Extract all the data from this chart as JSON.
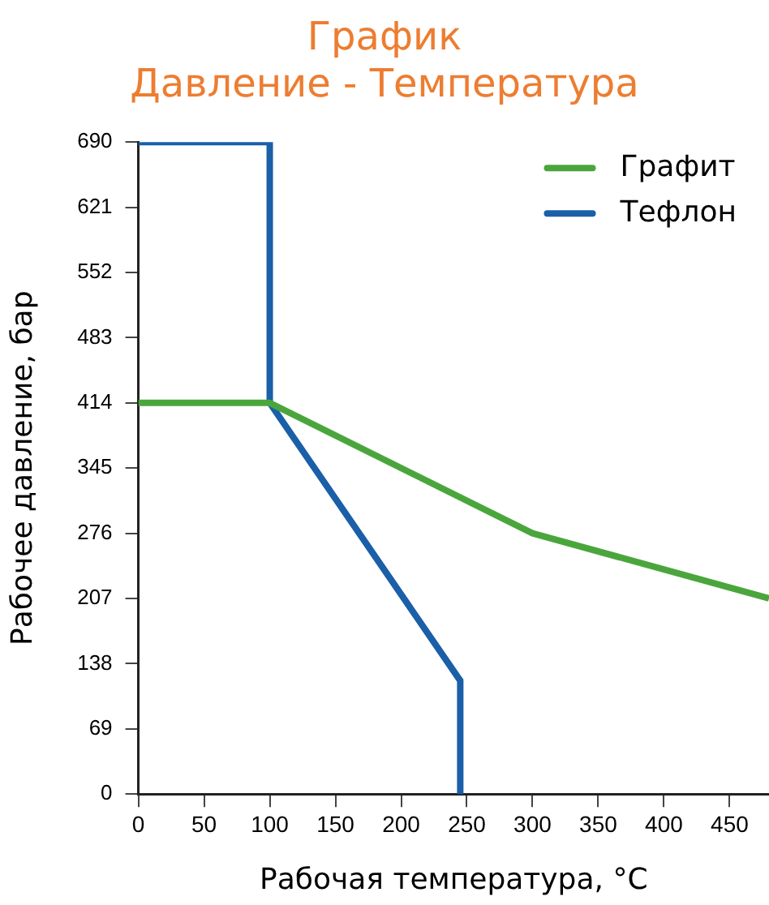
{
  "chart_data": {
    "type": "line",
    "title": "График\nДавление - Температура",
    "xlabel": "Рабочая температура, °C",
    "ylabel": "Рабочее давление, бар",
    "xlim": [
      0,
      480
    ],
    "xticks": [
      0,
      50,
      100,
      150,
      200,
      250,
      300,
      350,
      400,
      450
    ],
    "ylim": [
      0,
      690
    ],
    "yticks": [
      0,
      69,
      138,
      207,
      276,
      345,
      414,
      483,
      552,
      621,
      690
    ],
    "legend": "top right",
    "marker": "none",
    "line_style": "solid",
    "series": [
      {
        "name": "Графит",
        "color": "#4aa63c",
        "x": [
          0,
          100,
          300,
          480
        ],
        "values": [
          414,
          414,
          276,
          207
        ]
      },
      {
        "name": "Тефлон",
        "color": "#1a5fa8",
        "x": [
          0,
          100,
          100,
          245,
          245
        ],
        "values": [
          690,
          690,
          414,
          120,
          0
        ]
      }
    ]
  }
}
